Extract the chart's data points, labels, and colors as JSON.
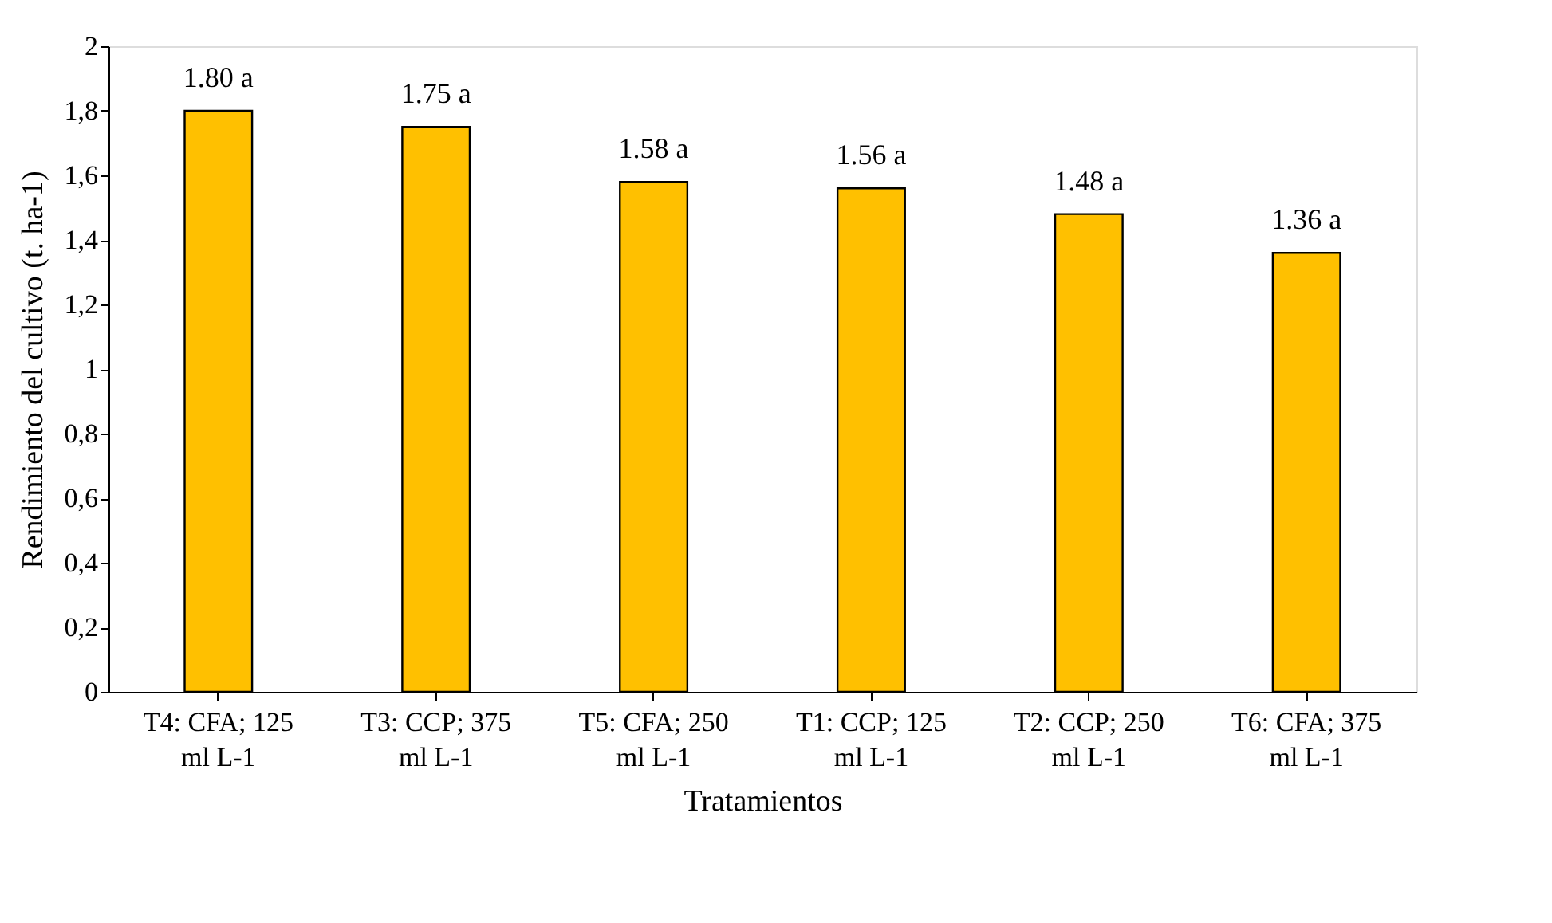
{
  "chart_data": {
    "type": "bar",
    "xlabel": "Tratamientos",
    "ylabel": "Rendimiento del cultivo (t. ha-1)",
    "categories": [
      "T4: CFA; 125 ml L-1",
      "T3: CCP; 375 ml L-1",
      "T5: CFA; 250 ml L-1",
      "T1: CCP; 125 ml L-1",
      "T2: CCP; 250 ml L-1",
      "T6: CFA; 375 ml L-1"
    ],
    "values": [
      1.8,
      1.75,
      1.58,
      1.56,
      1.48,
      1.36
    ],
    "value_labels": [
      "1.80 a",
      "1.75 a",
      "1.58 a",
      "1.56 a",
      "1.48 a",
      "1.36 a"
    ],
    "color": "#ffc000",
    "ylim": [
      0,
      2
    ],
    "yticks": [
      0,
      {
        "value": 0.2,
        "label": "0,2"
      },
      {
        "value": 0.4,
        "label": "0,4"
      },
      {
        "value": 0.6,
        "label": "0,6"
      },
      {
        "value": 0.8,
        "label": "0,8"
      },
      1,
      {
        "value": 1.2,
        "label": "1,2"
      },
      {
        "value": 1.4,
        "label": "1,4"
      },
      {
        "value": 1.6,
        "label": "1,6"
      },
      {
        "value": 1.8,
        "label": "1,8"
      },
      2
    ],
    "grid": false
  }
}
